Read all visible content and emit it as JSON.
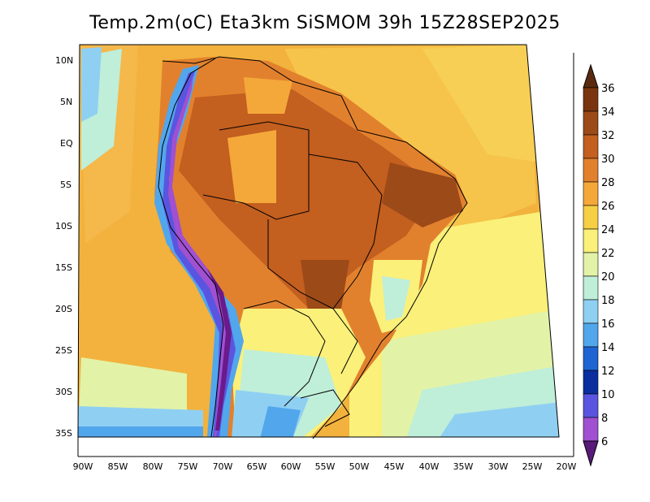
{
  "title": "Temp.2m(oC) Eta3km SiSMOM 39h 15Z28SEP2025",
  "map": {
    "lat_labels": [
      "10N",
      "5N",
      "EQ",
      "5S",
      "10S",
      "15S",
      "20S",
      "25S",
      "30S",
      "35S"
    ],
    "lon_labels": [
      "90W",
      "85W",
      "80W",
      "75W",
      "70W",
      "65W",
      "60W",
      "55W",
      "50W",
      "45W",
      "40W",
      "35W",
      "30W",
      "25W",
      "20W"
    ]
  },
  "colorbar": {
    "labels": [
      "36",
      "34",
      "32",
      "30",
      "28",
      "26",
      "24",
      "22",
      "20",
      "18",
      "16",
      "14",
      "12",
      "10",
      "8",
      "6"
    ],
    "colors": [
      "#7a3510",
      "#9c4a18",
      "#c35f1f",
      "#e2812d",
      "#f5a83a",
      "#f7cf45",
      "#faf07a",
      "#e2f3a8",
      "#bfeed9",
      "#8fd0f2",
      "#52a6ec",
      "#1e64d2",
      "#0a2da0",
      "#5a55e0",
      "#a050d0",
      "#6a1a8a"
    ],
    "top_arrow_color": "#5a2a10",
    "bottom_arrow_color": "#5a1a7a"
  }
}
